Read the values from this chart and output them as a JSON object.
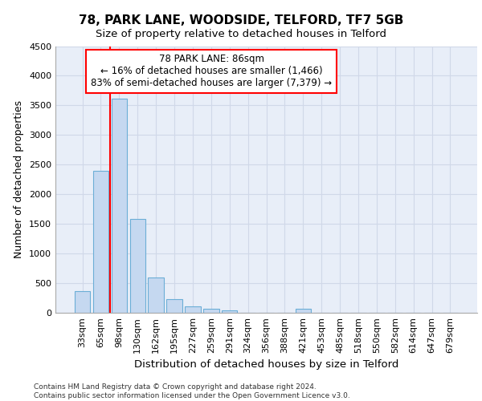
{
  "title_line1": "78, PARK LANE, WOODSIDE, TELFORD, TF7 5GB",
  "title_line2": "Size of property relative to detached houses in Telford",
  "xlabel": "Distribution of detached houses by size in Telford",
  "ylabel": "Number of detached properties",
  "footnote": "Contains HM Land Registry data © Crown copyright and database right 2024.\nContains public sector information licensed under the Open Government Licence v3.0.",
  "bar_labels": [
    "33sqm",
    "65sqm",
    "98sqm",
    "130sqm",
    "162sqm",
    "195sqm",
    "227sqm",
    "259sqm",
    "291sqm",
    "324sqm",
    "356sqm",
    "388sqm",
    "421sqm",
    "453sqm",
    "485sqm",
    "518sqm",
    "550sqm",
    "582sqm",
    "614sqm",
    "647sqm",
    "679sqm"
  ],
  "bar_values": [
    370,
    2400,
    3620,
    1580,
    590,
    225,
    110,
    65,
    45,
    0,
    0,
    0,
    65,
    0,
    0,
    0,
    0,
    0,
    0,
    0,
    0
  ],
  "bar_color": "#c5d8f0",
  "bar_edge_color": "#6baed6",
  "ylim": [
    0,
    4500
  ],
  "yticks": [
    0,
    500,
    1000,
    1500,
    2000,
    2500,
    3000,
    3500,
    4000,
    4500
  ],
  "property_label": "78 PARK LANE: 86sqm",
  "annotation_line1": "← 16% of detached houses are smaller (1,466)",
  "annotation_line2": "83% of semi-detached houses are larger (7,379) →",
  "vline_x_index": 1.5,
  "grid_color": "#d0d8e8",
  "bg_color": "#e8eef8",
  "title1_fontsize": 11,
  "title2_fontsize": 9.5,
  "ylabel_fontsize": 9,
  "xlabel_fontsize": 9.5,
  "tick_fontsize": 8,
  "annot_fontsize": 8.5,
  "footnote_fontsize": 6.5
}
